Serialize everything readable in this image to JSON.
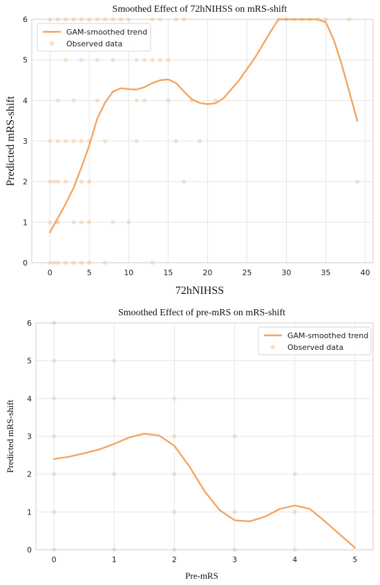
{
  "colors": {
    "trend": "#f4a460",
    "points": "#f4a460",
    "grid": "#e6e6e6",
    "frame": "#cccccc",
    "text": "#222222"
  },
  "chart_data": [
    {
      "type": "scatter",
      "title": "Smoothed Effect of 72hNIHSS on mRS-shift",
      "xlabel": "72hNIHSS",
      "ylabel": "Predicted mRS-shift",
      "xlim": [
        -2.3,
        41
      ],
      "ylim": [
        0,
        6
      ],
      "xticks": [
        0,
        5,
        10,
        15,
        20,
        25,
        30,
        35,
        40
      ],
      "yticks": [
        0,
        1,
        2,
        3,
        4,
        5,
        6
      ],
      "grid": true,
      "legend_position": "top-left",
      "legend": [
        "GAM-smoothed trend",
        "Observed data"
      ],
      "series": [
        {
          "name": "GAM-smoothed trend",
          "kind": "line",
          "x": [
            0,
            1,
            2,
            3,
            4,
            5,
            6,
            7,
            8,
            9,
            10,
            11,
            12,
            13,
            14,
            15,
            16,
            17,
            18,
            19,
            20,
            21,
            22,
            24,
            26,
            28,
            29,
            30,
            32,
            34,
            35,
            36,
            37,
            38,
            39
          ],
          "y": [
            0.75,
            1.1,
            1.45,
            1.85,
            2.35,
            2.9,
            3.55,
            3.95,
            4.22,
            4.3,
            4.28,
            4.27,
            4.33,
            4.43,
            4.5,
            4.52,
            4.43,
            4.22,
            4.03,
            3.94,
            3.91,
            3.93,
            4.05,
            4.5,
            5.05,
            5.7,
            6.0,
            6.0,
            6.0,
            6.0,
            5.93,
            5.5,
            4.9,
            4.2,
            3.5
          ]
        },
        {
          "name": "Observed data",
          "kind": "points",
          "points": [
            [
              0,
              0
            ],
            [
              0.5,
              0
            ],
            [
              1,
              0
            ],
            [
              2,
              0
            ],
            [
              3,
              0
            ],
            [
              4,
              0
            ],
            [
              5,
              0
            ],
            [
              7,
              0
            ],
            [
              13,
              0
            ],
            [
              0,
              1
            ],
            [
              0.8,
              1
            ],
            [
              1,
              1
            ],
            [
              3,
              1
            ],
            [
              4,
              1
            ],
            [
              5,
              1
            ],
            [
              8,
              1
            ],
            [
              10,
              1
            ],
            [
              0,
              2
            ],
            [
              0.5,
              2
            ],
            [
              1,
              2
            ],
            [
              2,
              2
            ],
            [
              4,
              2
            ],
            [
              5,
              2
            ],
            [
              17,
              2
            ],
            [
              39,
              2
            ],
            [
              0,
              3
            ],
            [
              1,
              3
            ],
            [
              2,
              3
            ],
            [
              3,
              3
            ],
            [
              4,
              3
            ],
            [
              5,
              3
            ],
            [
              7,
              3
            ],
            [
              11,
              3
            ],
            [
              16,
              3
            ],
            [
              19,
              3
            ],
            [
              1,
              4
            ],
            [
              3,
              4
            ],
            [
              6,
              4
            ],
            [
              11,
              4
            ],
            [
              12,
              4
            ],
            [
              15,
              4
            ],
            [
              18,
              4
            ],
            [
              21,
              4
            ],
            [
              2,
              5
            ],
            [
              4,
              5
            ],
            [
              6,
              5
            ],
            [
              8,
              5
            ],
            [
              11,
              5
            ],
            [
              12,
              5
            ],
            [
              13,
              5
            ],
            [
              14,
              5
            ],
            [
              15,
              5
            ],
            [
              0,
              6
            ],
            [
              1,
              6
            ],
            [
              2,
              6
            ],
            [
              3,
              6
            ],
            [
              4,
              6
            ],
            [
              5,
              6
            ],
            [
              6,
              6
            ],
            [
              7,
              6
            ],
            [
              8,
              6
            ],
            [
              9,
              6
            ],
            [
              10,
              6
            ],
            [
              13,
              6
            ],
            [
              14,
              6
            ],
            [
              16,
              6
            ],
            [
              17,
              6
            ],
            [
              29,
              6
            ],
            [
              30,
              6
            ],
            [
              31,
              6
            ],
            [
              32,
              6
            ],
            [
              33,
              6
            ],
            [
              34,
              6
            ],
            [
              35,
              6
            ],
            [
              38,
              6
            ]
          ]
        }
      ]
    },
    {
      "type": "scatter",
      "title": "Smoothed Effect of pre-mRS on mRS-shift",
      "xlabel": "Pre-mRS",
      "ylabel": "Predicted mRS-shift",
      "xlim": [
        -0.3,
        5.3
      ],
      "ylim": [
        0,
        6
      ],
      "xticks": [
        0,
        1,
        2,
        3,
        4,
        5
      ],
      "yticks": [
        0,
        1,
        2,
        3,
        4,
        5,
        6
      ],
      "grid": true,
      "legend_position": "top-right",
      "legend": [
        "GAM-smoothed trend",
        "Observed data"
      ],
      "series": [
        {
          "name": "GAM-smoothed trend",
          "kind": "line",
          "x": [
            0,
            0.25,
            0.5,
            0.75,
            1.0,
            1.25,
            1.5,
            1.75,
            2.0,
            2.25,
            2.5,
            2.75,
            3.0,
            3.25,
            3.5,
            3.75,
            4.0,
            4.25,
            4.5,
            4.75,
            5.0
          ],
          "y": [
            2.4,
            2.46,
            2.55,
            2.65,
            2.8,
            2.97,
            3.07,
            3.02,
            2.75,
            2.2,
            1.55,
            1.05,
            0.78,
            0.75,
            0.87,
            1.08,
            1.17,
            1.08,
            0.75,
            0.4,
            0.05
          ]
        },
        {
          "name": "Observed data",
          "kind": "points",
          "points": [
            [
              0,
              0
            ],
            [
              0,
              1
            ],
            [
              0,
              2
            ],
            [
              0,
              3
            ],
            [
              0,
              4
            ],
            [
              0,
              5
            ],
            [
              0,
              6
            ],
            [
              1,
              0
            ],
            [
              1,
              2
            ],
            [
              1,
              4
            ],
            [
              1,
              5
            ],
            [
              2,
              0
            ],
            [
              2,
              1
            ],
            [
              2,
              2
            ],
            [
              2,
              3
            ],
            [
              2,
              4
            ],
            [
              3,
              0
            ],
            [
              3,
              1
            ],
            [
              3,
              3
            ],
            [
              4,
              0
            ],
            [
              4,
              1
            ],
            [
              4,
              2
            ]
          ]
        }
      ]
    }
  ]
}
